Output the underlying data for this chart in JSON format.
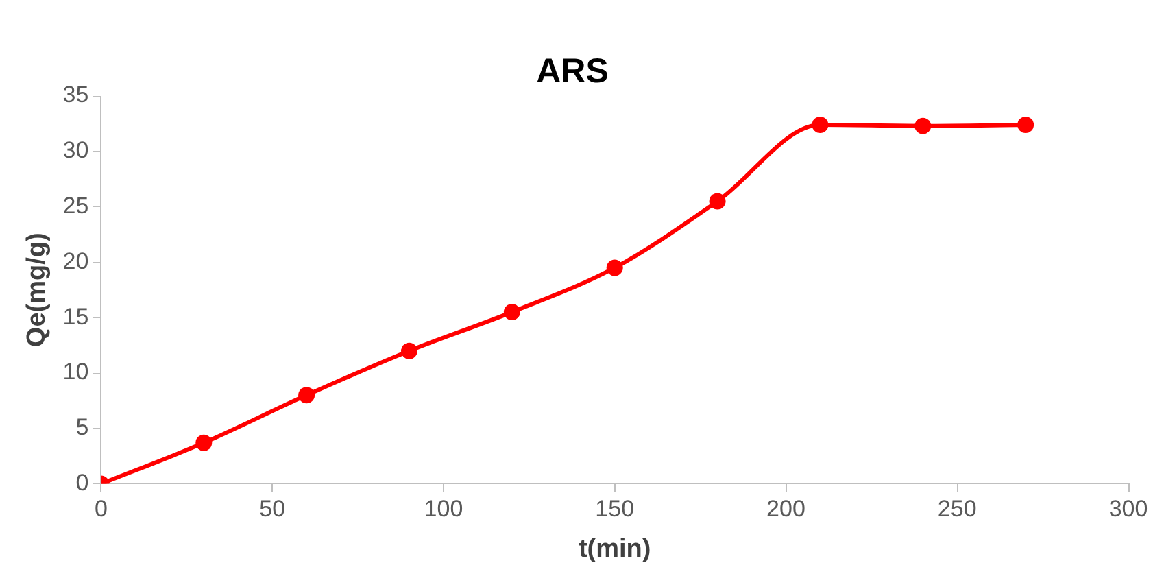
{
  "chart_data": {
    "type": "line",
    "title": "ARS",
    "xlabel": "t(min)",
    "ylabel": "Qe(mg/g)",
    "x": [
      0,
      30,
      60,
      90,
      120,
      150,
      180,
      210,
      240,
      270
    ],
    "series": [
      {
        "color": "#ff0000",
        "values": [
          0,
          3.7,
          8,
          12,
          15.5,
          19.5,
          25.5,
          32.4,
          32.3,
          32.4
        ]
      }
    ],
    "xlim": [
      0,
      300
    ],
    "xticks": [
      0,
      50,
      100,
      150,
      200,
      250,
      300
    ],
    "ylim": [
      0,
      35
    ],
    "yticks": [
      0,
      5,
      10,
      15,
      20,
      25,
      30,
      35
    ],
    "grid": false,
    "legend": false,
    "marker": "circle",
    "line_style": "solid"
  }
}
